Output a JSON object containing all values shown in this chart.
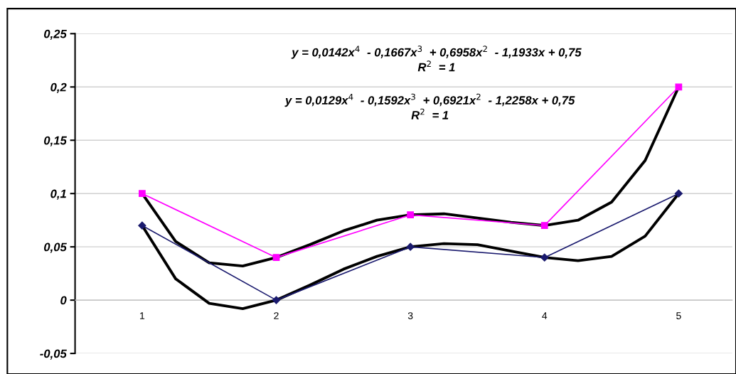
{
  "chart_data": {
    "type": "line",
    "x": [
      1,
      2,
      3,
      4,
      5
    ],
    "series": [
      {
        "color": "#ff00ff",
        "marker": "square",
        "values": [
          0.1,
          0.04,
          0.08,
          0.07,
          0.2
        ]
      },
      {
        "color": "#1a1a6e",
        "marker": "diamond",
        "values": [
          0.07,
          0,
          0.05,
          0.04,
          0.1
        ]
      },
      {
        "type": "line",
        "color": "#000000",
        "marker": "none",
        "x": [
          1,
          1.25,
          1.5,
          1.75,
          2,
          2.25,
          2.5,
          2.75,
          3,
          3.25,
          3.5,
          3.75,
          4,
          4.25,
          4.5,
          4.75,
          5
        ],
        "values": [
          0.1,
          0.055,
          0.035,
          0.032,
          0.04,
          0.052,
          0.065,
          0.075,
          0.08,
          0.081,
          0.077,
          0.073,
          0.07,
          0.075,
          0.092,
          0.131,
          0.2
        ]
      },
      {
        "type": "line",
        "color": "#000000",
        "marker": "none",
        "x": [
          1,
          1.25,
          1.5,
          1.75,
          2,
          2.25,
          2.5,
          2.75,
          3,
          3.25,
          3.5,
          3.75,
          4,
          4.25,
          4.5,
          4.75,
          5
        ],
        "values": [
          0.07,
          0.02,
          -0.003,
          -0.008,
          0,
          0.014,
          0.029,
          0.041,
          0.05,
          0.053,
          0.052,
          0.046,
          0.04,
          0.037,
          0.041,
          0.06,
          0.1
        ]
      }
    ],
    "xlim": [
      0.5,
      5.4
    ],
    "xticks": [
      1,
      2,
      3,
      4,
      5
    ],
    "ylim": [
      -0.05,
      0.25
    ],
    "yticks": [
      {
        "value": -0.05,
        "label": "-0,05"
      },
      {
        "value": 0,
        "label": "0"
      },
      {
        "value": 0.05,
        "label": "0,05"
      },
      {
        "value": 0.1,
        "label": "0,1"
      },
      {
        "value": 0.15,
        "label": "0,15"
      },
      {
        "value": 0.2,
        "label": "0,2"
      },
      {
        "value": 0.25,
        "label": "0,25"
      }
    ],
    "grid": "y",
    "line_style": "solid",
    "annotations": [
      "y = 0,0142x$^{4}$  - 0,1667x$^{3}$  + 0,6958x$^{2}$  - 1,1933x + 0,75",
      "R$^{2}$  = 1",
      "y = 0,0129x$^{4}$  - 0,1592x$^{3}$  + 0,6921x$^{2}$  - 1,2258x + 0,75",
      "R$^{2}$  = 1"
    ]
  }
}
